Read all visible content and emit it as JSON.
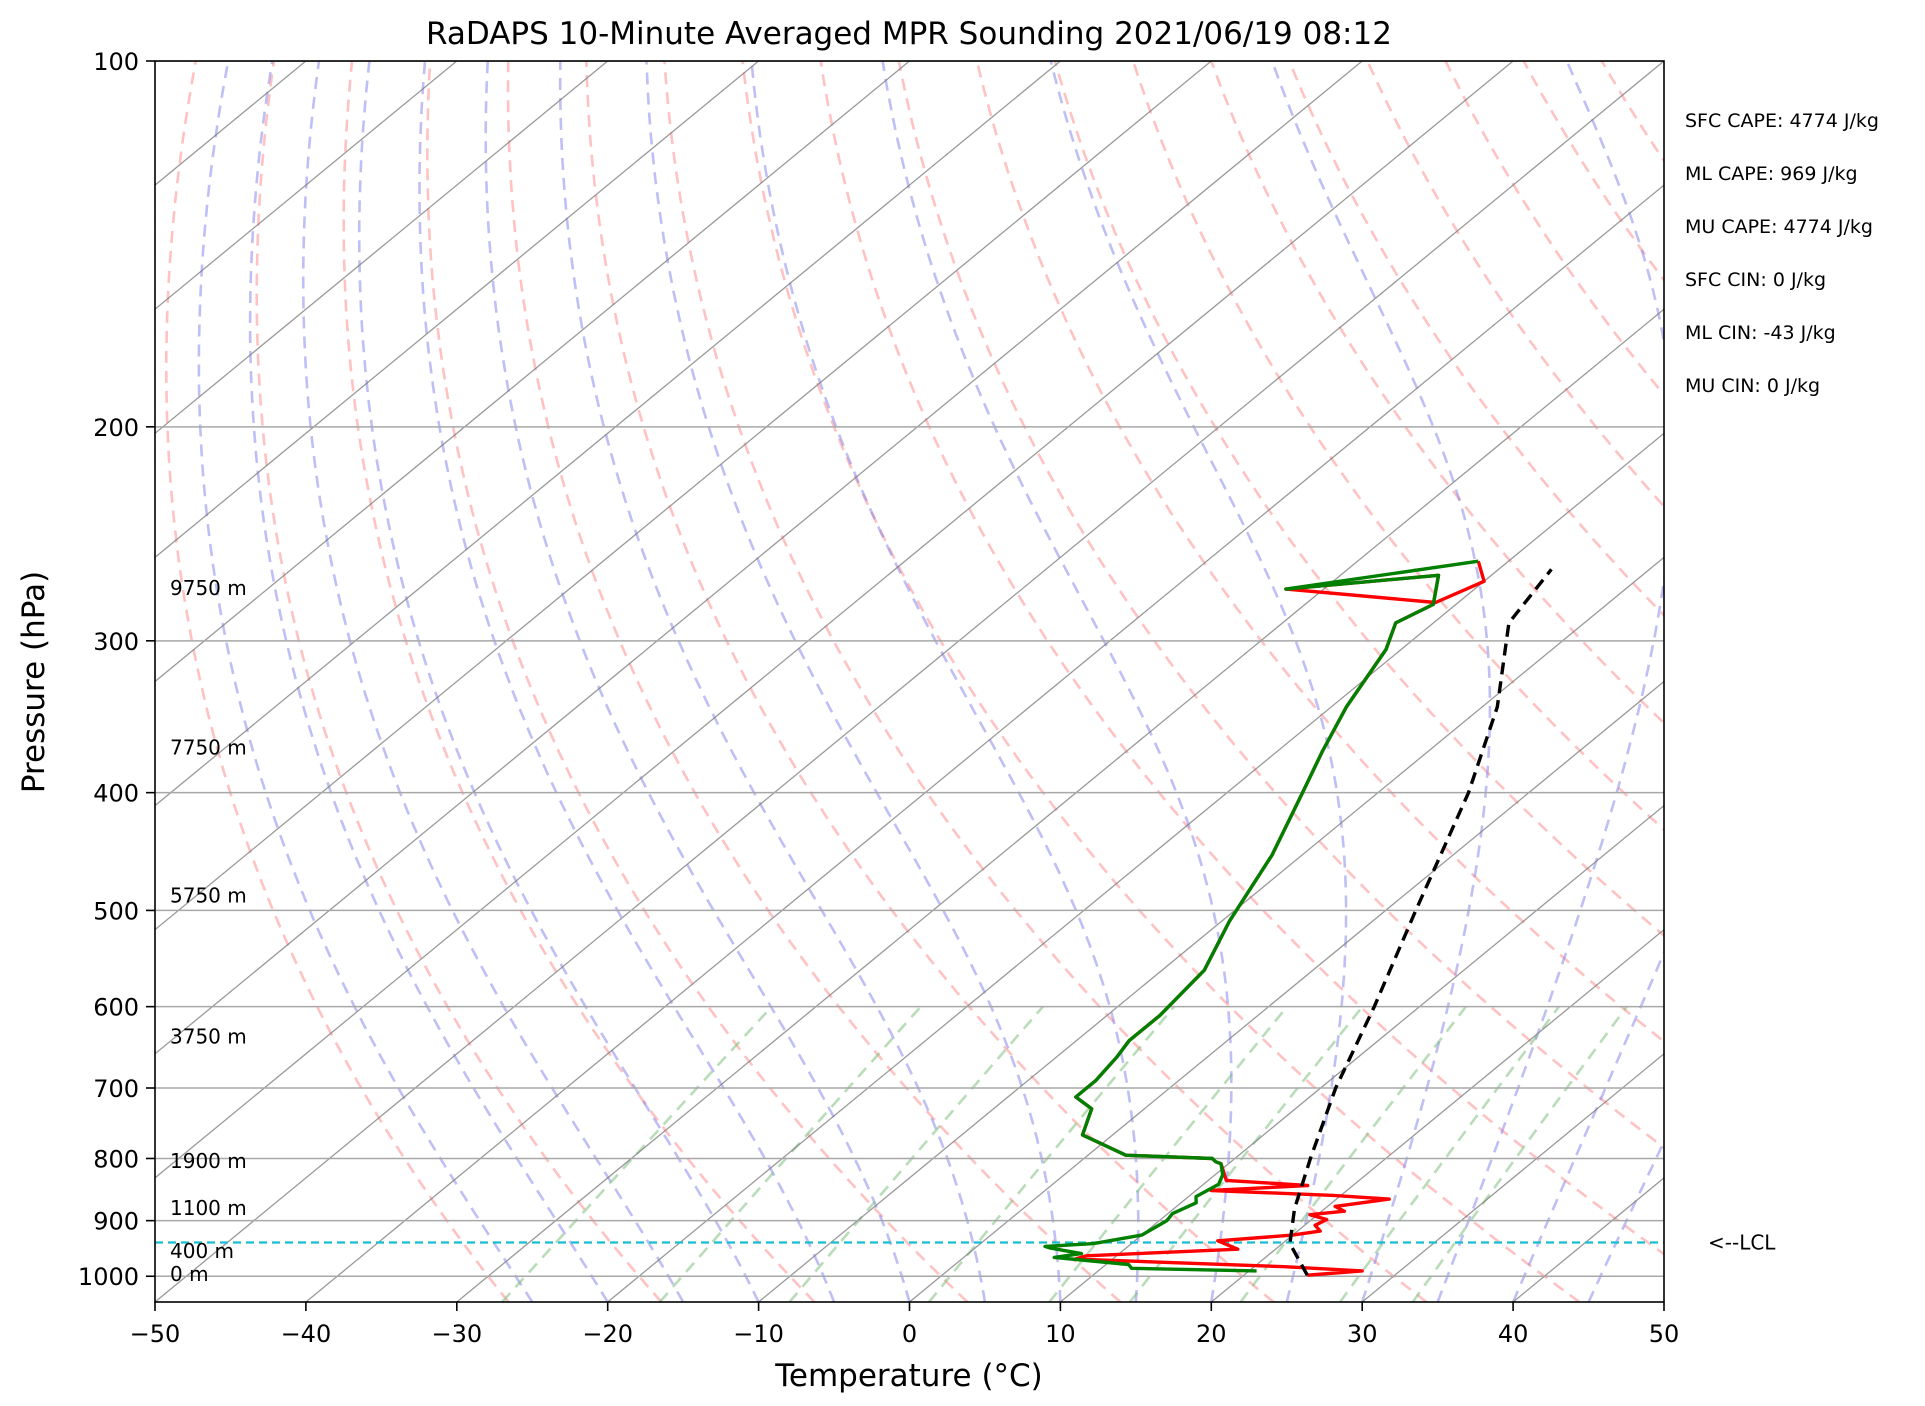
{
  "chart_data": {
    "type": "line",
    "title": "RaDAPS 10-Minute Averaged MPR Sounding 2021/06/19 08:12",
    "xlabel": "Temperature (°C)",
    "ylabel": "Pressure (hPa)",
    "xlim": [
      -50,
      50
    ],
    "ylim": [
      1050,
      100
    ],
    "y_scale": "log",
    "grid": true,
    "x_ticks": [
      -50,
      -40,
      -30,
      -20,
      -10,
      0,
      10,
      20,
      30,
      40,
      50
    ],
    "x_tick_labels": [
      "−50",
      "−40",
      "−30",
      "−20",
      "−10",
      "0",
      "10",
      "20",
      "30",
      "40",
      "50"
    ],
    "y_ticks": [
      1000,
      900,
      800,
      700,
      600,
      500,
      400,
      300,
      200,
      100
    ],
    "y_tick_labels": [
      "1000",
      "900",
      "800",
      "700",
      "600",
      "500",
      "400",
      "300",
      "200",
      "100"
    ],
    "height_labels": [
      {
        "text": "0 m",
        "p": 998
      },
      {
        "text": "400 m",
        "p": 955
      },
      {
        "text": "1100 m",
        "p": 880
      },
      {
        "text": "1900 m",
        "p": 805
      },
      {
        "text": "3750 m",
        "p": 636
      },
      {
        "text": "5750 m",
        "p": 487
      },
      {
        "text": "7750 m",
        "p": 368
      },
      {
        "text": "9750 m",
        "p": 272
      }
    ],
    "series": [
      {
        "color": "#ff0000",
        "points": [
          [
            24.2,
            998
          ],
          [
            27.5,
            990
          ],
          [
            22.0,
            982
          ],
          [
            7.5,
            968
          ],
          [
            8.0,
            962
          ],
          [
            17.5,
            950
          ],
          [
            15.5,
            935
          ],
          [
            20.0,
            925
          ],
          [
            21.5,
            918
          ],
          [
            20.7,
            908
          ],
          [
            21.0,
            898
          ],
          [
            19.5,
            890
          ],
          [
            21.5,
            884
          ],
          [
            20.5,
            876
          ],
          [
            23.5,
            864
          ],
          [
            19.5,
            858
          ],
          [
            11.0,
            850
          ],
          [
            17.0,
            842
          ],
          [
            11.2,
            834
          ],
          [
            9.5,
            808
          ],
          [
            9.0,
            805
          ],
          [
            8.5,
            800
          ],
          [
            2.5,
            795
          ],
          [
            -2.0,
            765
          ],
          [
            -3.5,
            728
          ],
          [
            -5.5,
            712
          ],
          [
            -5.5,
            690
          ],
          [
            -6.0,
            660
          ],
          [
            -6.5,
            640
          ],
          [
            -6.5,
            610
          ],
          [
            -7.2,
            560
          ],
          [
            -9.5,
            510
          ],
          [
            -12.0,
            450
          ],
          [
            -15.0,
            400
          ],
          [
            -17.0,
            370
          ],
          [
            -19.0,
            340
          ],
          [
            -21.0,
            305
          ],
          [
            -22.5,
            290
          ],
          [
            -21.5,
            280
          ],
          [
            -23.5,
            265
          ],
          [
            -32.5,
            272
          ],
          [
            -21.5,
            279
          ],
          [
            -20.0,
            268
          ],
          [
            -22.0,
            258
          ]
        ]
      },
      {
        "color": "#008000",
        "points": [
          [
            20.5,
            990
          ],
          [
            12.0,
            985
          ],
          [
            11.5,
            978
          ],
          [
            6.0,
            965
          ],
          [
            7.5,
            958
          ],
          [
            6.0,
            952
          ],
          [
            5.0,
            948
          ],
          [
            4.5,
            945
          ],
          [
            7.5,
            940
          ],
          [
            10.0,
            925
          ],
          [
            10.5,
            900
          ],
          [
            10.3,
            888
          ],
          [
            11.0,
            870
          ],
          [
            10.5,
            860
          ],
          [
            11.0,
            840
          ],
          [
            10.5,
            825
          ],
          [
            9.5,
            808
          ],
          [
            9.0,
            805
          ],
          [
            8.5,
            800
          ],
          [
            2.5,
            795
          ],
          [
            -2.0,
            765
          ],
          [
            -3.5,
            728
          ],
          [
            -5.5,
            712
          ],
          [
            -5.5,
            690
          ],
          [
            -6.0,
            660
          ],
          [
            -6.5,
            640
          ],
          [
            -6.5,
            610
          ],
          [
            -7.2,
            560
          ],
          [
            -9.5,
            510
          ],
          [
            -12.0,
            450
          ],
          [
            -15.0,
            400
          ],
          [
            -17.0,
            370
          ],
          [
            -19.0,
            340
          ],
          [
            -21.0,
            305
          ],
          [
            -22.5,
            290
          ],
          [
            -21.5,
            280
          ],
          [
            -23.5,
            265
          ],
          [
            -32.5,
            272
          ],
          [
            -22.0,
            258
          ]
        ]
      },
      {
        "color": "#000000",
        "points": [
          [
            24.2,
            998
          ],
          [
            20.5,
            940
          ],
          [
            18.0,
            880
          ],
          [
            15.0,
            800
          ],
          [
            11.0,
            700
          ],
          [
            7.0,
            600
          ],
          [
            2.0,
            500
          ],
          [
            -4.0,
            400
          ],
          [
            -9.0,
            340
          ],
          [
            -15.0,
            290
          ],
          [
            -16.5,
            262
          ]
        ]
      }
    ],
    "lcl_line": {
      "p": 938,
      "label": "<--LCL"
    },
    "stats": [
      "SFC CAPE: 4774 J/kg",
      "ML CAPE: 969 J/kg",
      "MU CAPE: 4774 J/kg",
      "SFC CIN: 0 J/kg",
      "ML CIN: -43 J/kg",
      "MU CIN: 0 J/kg"
    ],
    "colors": {
      "dry_adiabat": "#ff9090",
      "moist_adiabat": "#8080ee",
      "mixing_ratio": "#7fbf7f",
      "isotherm": "#808080",
      "lcl": "#17becf"
    }
  }
}
